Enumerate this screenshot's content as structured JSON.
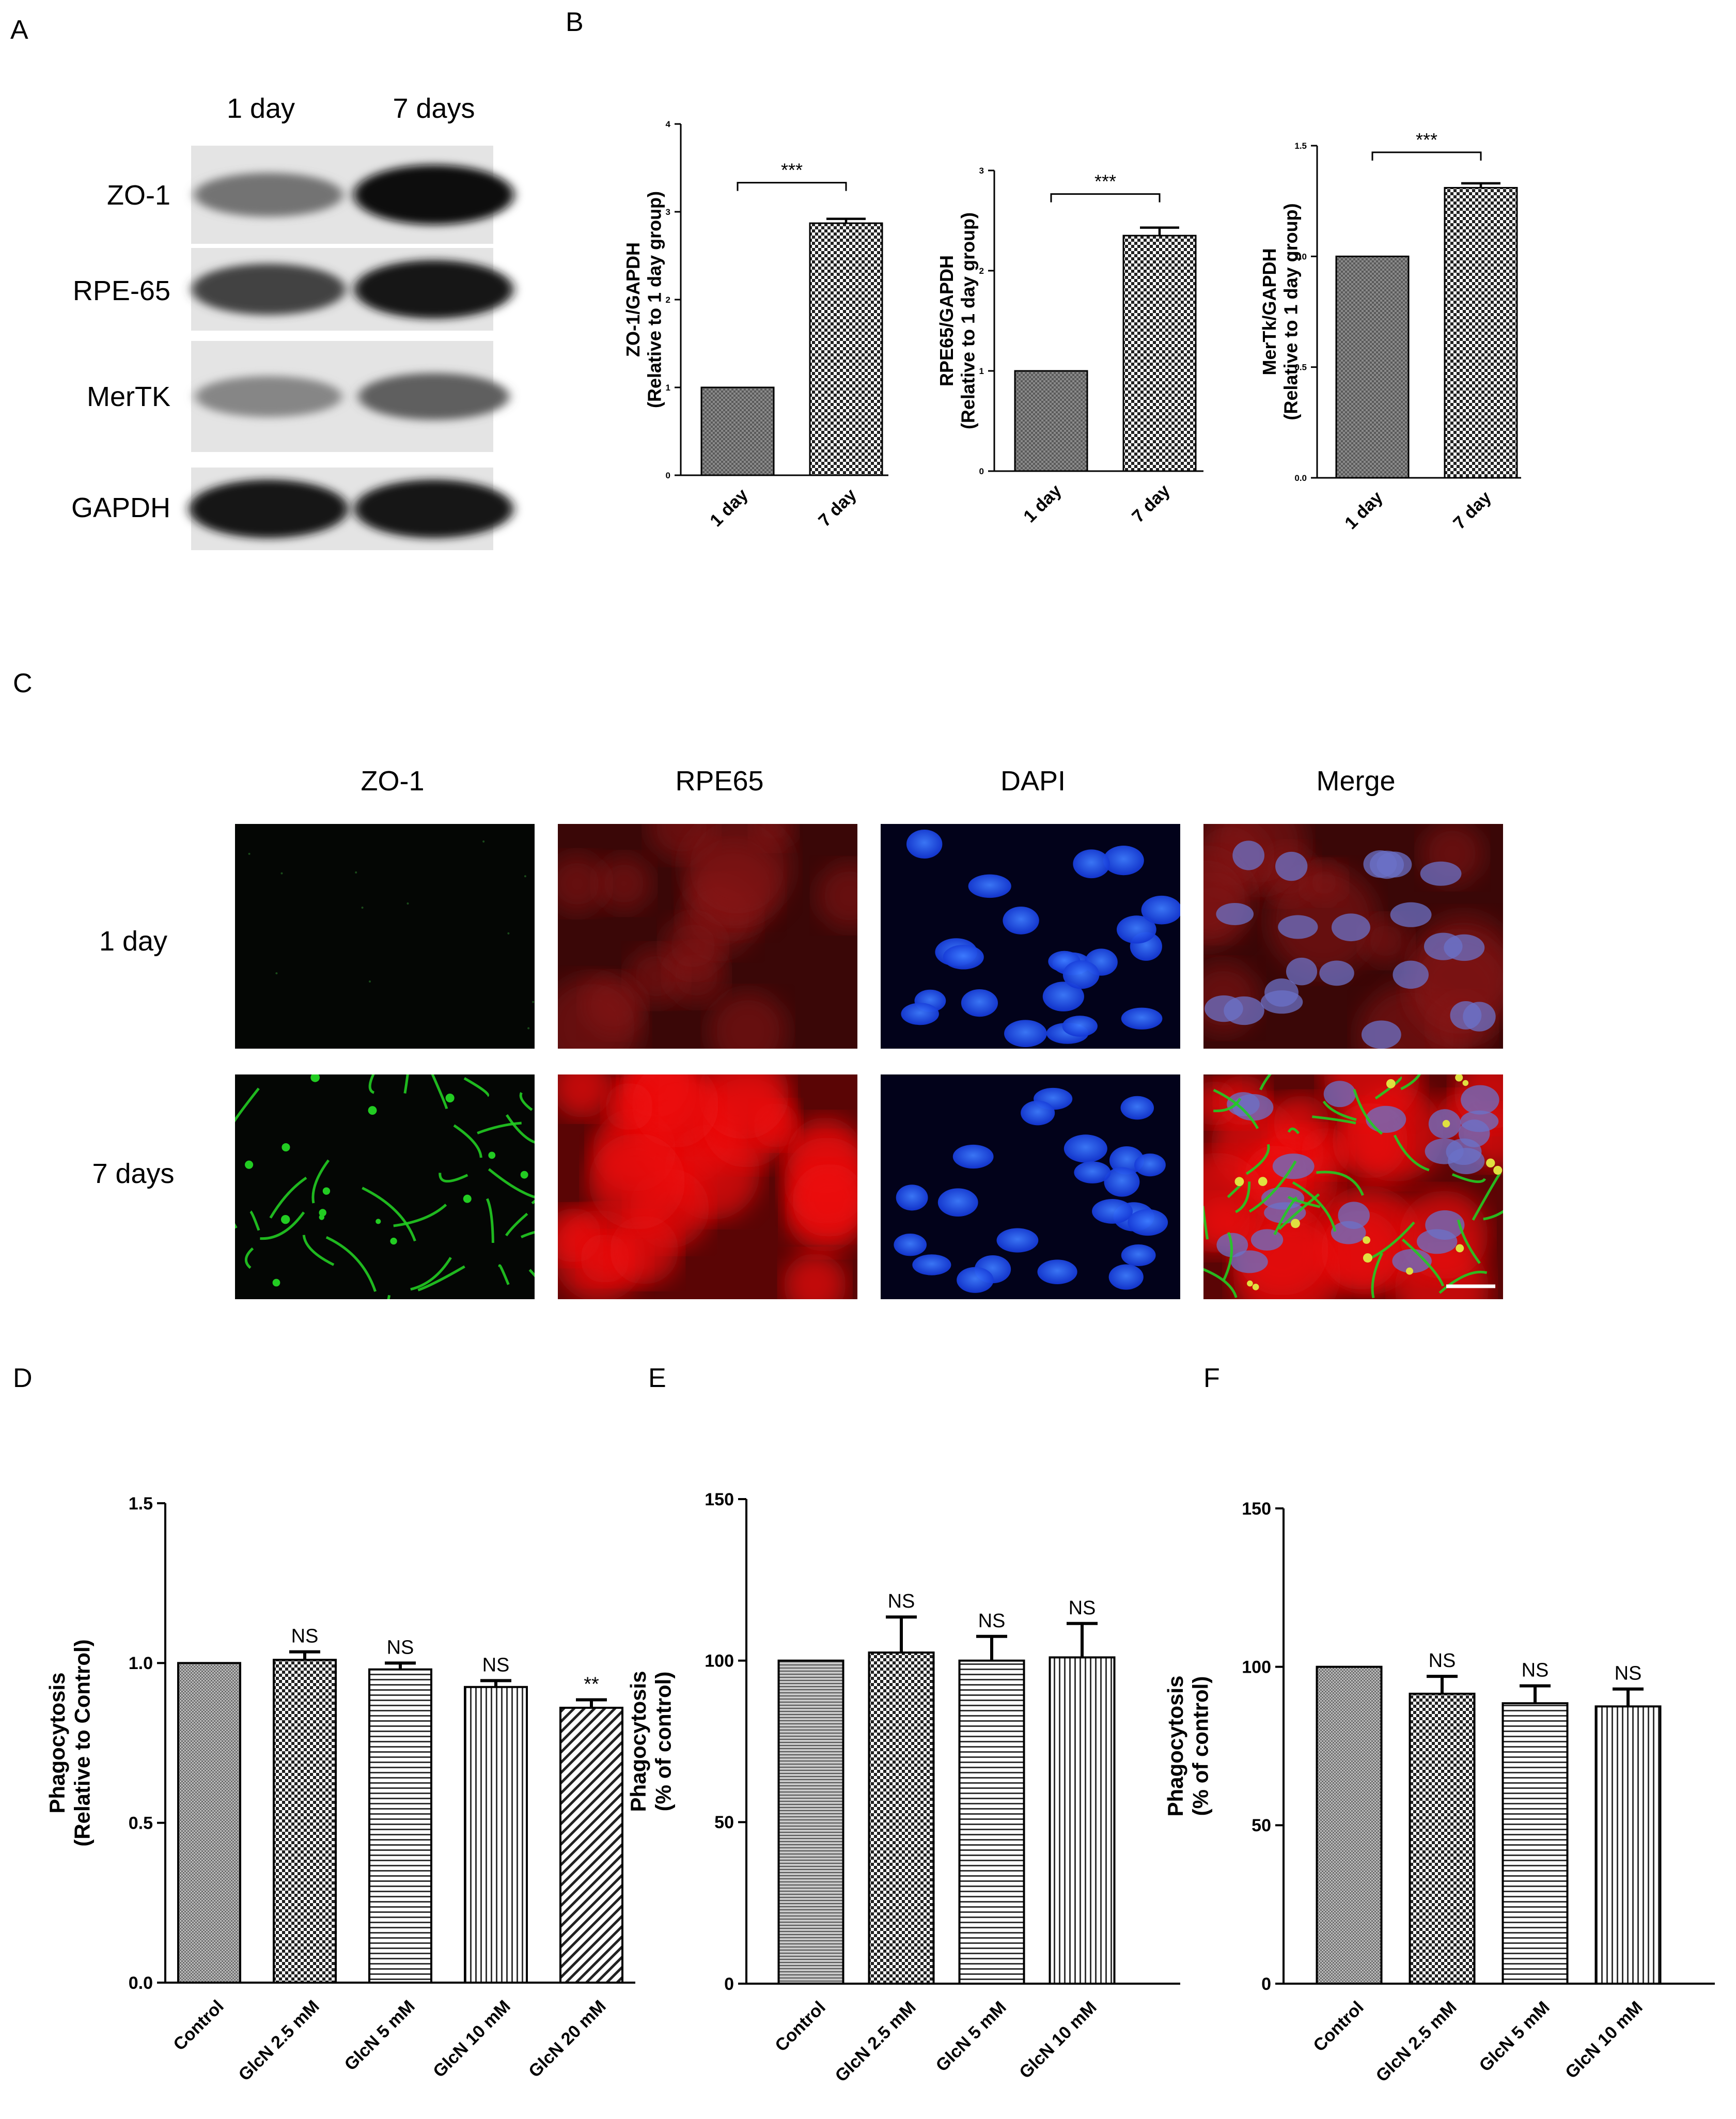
{
  "panel_labels": {
    "A": "A",
    "B": "B",
    "C": "C",
    "D": "D",
    "E": "E",
    "F": "F"
  },
  "western_blot": {
    "column_labels": [
      "1 day",
      "7 days"
    ],
    "rows": [
      {
        "label": "ZO-1",
        "band_intensity": [
          0.45,
          1.0
        ]
      },
      {
        "label": "RPE-65",
        "band_intensity": [
          0.7,
          0.95
        ]
      },
      {
        "label": "MerTK",
        "band_intensity": [
          0.35,
          0.55
        ]
      },
      {
        "label": "GAPDH",
        "band_intensity": [
          0.95,
          0.95
        ]
      }
    ]
  },
  "immunofluorescence": {
    "column_labels": [
      "ZO-1",
      "RPE65",
      "DAPI",
      "Merge"
    ],
    "row_labels": [
      "1 day",
      "7 days"
    ],
    "colors": {
      "zo1": "#22cc22",
      "rpe65": "#ee1111",
      "dapi": "#1a4cff"
    }
  },
  "chart_data": [
    {
      "id": "B1",
      "type": "bar",
      "categories": [
        "1 day",
        "7 day"
      ],
      "values": [
        1.0,
        2.87
      ],
      "errors": [
        0,
        0.05
      ],
      "ylabel": [
        "ZO-1/GAPDH",
        "(Relative to 1 day group)"
      ],
      "ylim": [
        0,
        4
      ],
      "yticks": [
        0,
        1,
        2,
        3,
        4
      ],
      "ytick_labels": [
        "0",
        "1",
        "2",
        "3",
        "4"
      ],
      "significance": "***",
      "patterns": [
        "hatch-lines",
        "check"
      ]
    },
    {
      "id": "B2",
      "type": "bar",
      "categories": [
        "1 day",
        "7 day"
      ],
      "values": [
        1.0,
        2.35
      ],
      "errors": [
        0,
        0.08
      ],
      "ylabel": [
        "RPE65/GAPDH",
        "(Relative to 1 day group)"
      ],
      "ylim": [
        0,
        3
      ],
      "yticks": [
        0,
        1,
        2,
        3
      ],
      "ytick_labels": [
        "0",
        "1",
        "2",
        "3"
      ],
      "significance": "***",
      "patterns": [
        "hatch-lines",
        "check"
      ]
    },
    {
      "id": "B3",
      "type": "bar",
      "categories": [
        "1 day",
        "7 day"
      ],
      "values": [
        1.0,
        1.31
      ],
      "errors": [
        0,
        0.02
      ],
      "ylabel": [
        "MerTk/GAPDH",
        "(Relative to 1 day group)"
      ],
      "ylim": [
        0,
        1.5
      ],
      "yticks": [
        0,
        0.5,
        1.0,
        1.5
      ],
      "ytick_labels": [
        "0.0",
        "0.5",
        "1.0",
        "1.5"
      ],
      "significance": "***",
      "patterns": [
        "hatch-lines",
        "check"
      ]
    },
    {
      "id": "D",
      "type": "bar",
      "categories": [
        "Control",
        "GlcN 2.5 mM",
        "GlcN 5 mM",
        "GlcN 10 mM",
        "GlcN 20 mM"
      ],
      "values": [
        1.0,
        1.01,
        0.98,
        0.925,
        0.86
      ],
      "errors": [
        0,
        0.025,
        0.02,
        0.02,
        0.025
      ],
      "annotations": [
        "",
        "NS",
        "NS",
        "NS",
        "**"
      ],
      "ylabel": [
        "Phagocytosis",
        "(Relative to Control)"
      ],
      "ylim": [
        0,
        1.5
      ],
      "yticks": [
        0,
        0.5,
        1.0,
        1.5
      ],
      "ytick_labels": [
        "0.0",
        "0.5",
        "1.0",
        "1.5"
      ],
      "patterns": [
        "fine",
        "check",
        "hlines",
        "vlines",
        "diag"
      ]
    },
    {
      "id": "E",
      "type": "bar",
      "categories": [
        "Control",
        "GlcN 2.5 mM",
        "GlcN 5 mM",
        "GlcN 10 mM"
      ],
      "values": [
        100,
        102.5,
        100,
        101
      ],
      "errors": [
        0,
        11,
        7.5,
        10.5
      ],
      "annotations": [
        "",
        "NS",
        "NS",
        "NS"
      ],
      "ylabel": [
        "Phagocytosis",
        "(% of control)"
      ],
      "ylim": [
        0,
        150
      ],
      "yticks": [
        0,
        50,
        100,
        150
      ],
      "ytick_labels": [
        "0",
        "50",
        "100",
        "150"
      ],
      "patterns": [
        "hlines-fine",
        "check",
        "hlines",
        "vlines"
      ]
    },
    {
      "id": "F",
      "type": "bar",
      "categories": [
        "Control",
        "GlcN 2.5 mM",
        "GlcN 5 mM",
        "GlcN 10 mM"
      ],
      "values": [
        100,
        91.5,
        88.5,
        87.5
      ],
      "errors": [
        0,
        5.5,
        5.5,
        5.5
      ],
      "annotations": [
        "",
        "NS",
        "NS",
        "NS"
      ],
      "ylabel": [
        "Phagocytosis",
        "(% of control)"
      ],
      "ylim": [
        0,
        150
      ],
      "yticks": [
        0,
        50,
        100,
        150
      ],
      "ytick_labels": [
        "0",
        "50",
        "100",
        "150"
      ],
      "patterns": [
        "fine",
        "check",
        "hlines",
        "vlines"
      ]
    }
  ]
}
